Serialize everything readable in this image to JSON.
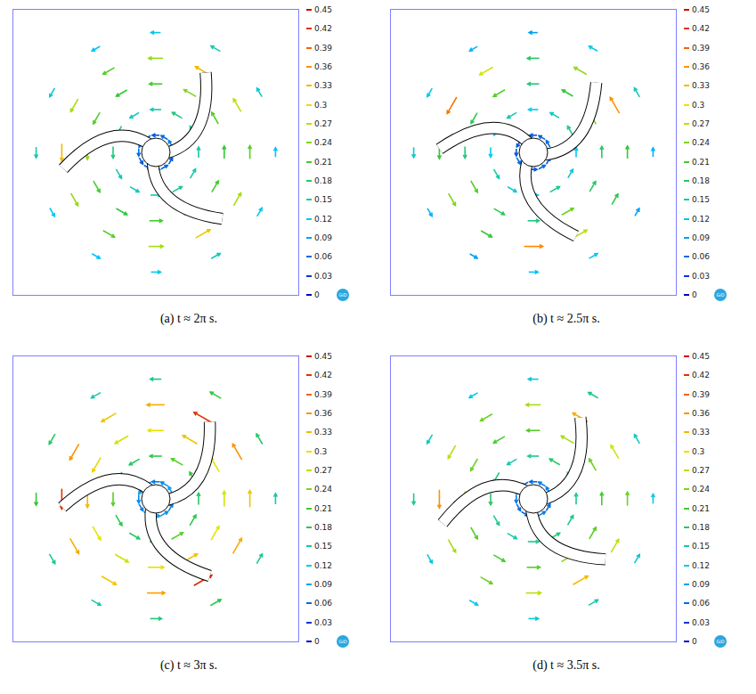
{
  "chart_data": [
    {
      "type": "vector_field",
      "title": "(a) t ≈ 2π s.",
      "xlim": [
        -0.5,
        0.5
      ],
      "ylim": [
        -0.5,
        0.5
      ],
      "tick_labels": false,
      "blade_tip_angles": [
        58,
        190,
        315
      ],
      "radii": [
        0.06,
        0.15,
        0.24,
        0.33,
        0.42
      ],
      "angles": [
        0,
        30,
        60,
        90,
        120,
        150,
        180,
        210,
        240,
        270,
        300,
        330
      ],
      "speed": [
        [
          0.06,
          0.07,
          0.06,
          0.05,
          0.06,
          0.07,
          0.06,
          0.05,
          0.06,
          0.07,
          0.06,
          0.05
        ],
        [
          0.15,
          0.16,
          0.17,
          0.15,
          0.14,
          0.16,
          0.17,
          0.15,
          0.14,
          0.15,
          0.16,
          0.15
        ],
        [
          0.2,
          0.22,
          0.24,
          0.21,
          0.2,
          0.22,
          0.25,
          0.21,
          0.2,
          0.21,
          0.24,
          0.21
        ],
        [
          0.22,
          0.27,
          0.33,
          0.25,
          0.22,
          0.26,
          0.33,
          0.25,
          0.22,
          0.26,
          0.32,
          0.26
        ],
        [
          0.11,
          0.13,
          0.15,
          0.12,
          0.11,
          0.13,
          0.15,
          0.12,
          0.11,
          0.12,
          0.14,
          0.12
        ]
      ],
      "colorbar": {
        "range": [
          0,
          0.45
        ],
        "ticks": [
          0,
          0.03,
          0.06,
          0.09,
          0.12,
          0.15,
          0.18,
          0.21,
          0.24,
          0.27,
          0.3,
          0.33,
          0.36,
          0.39,
          0.42,
          0.45
        ]
      },
      "logo": "GiD"
    },
    {
      "type": "vector_field",
      "title": "(b) t ≈ 2.5π s.",
      "xlim": [
        -0.5,
        0.5
      ],
      "ylim": [
        -0.5,
        0.5
      ],
      "tick_labels": false,
      "blade_tip_angles": [
        48,
        178,
        297
      ],
      "radii": [
        0.06,
        0.15,
        0.24,
        0.33,
        0.42
      ],
      "angles": [
        0,
        30,
        60,
        90,
        120,
        150,
        180,
        210,
        240,
        270,
        300,
        330
      ],
      "speed": [
        [
          0.05,
          0.06,
          0.05,
          0.05,
          0.06,
          0.05,
          0.05,
          0.06,
          0.05,
          0.05,
          0.06,
          0.05
        ],
        [
          0.12,
          0.16,
          0.14,
          0.12,
          0.15,
          0.13,
          0.12,
          0.15,
          0.13,
          0.12,
          0.16,
          0.13
        ],
        [
          0.18,
          0.24,
          0.2,
          0.17,
          0.22,
          0.19,
          0.17,
          0.22,
          0.19,
          0.17,
          0.23,
          0.18
        ],
        [
          0.2,
          0.36,
          0.25,
          0.18,
          0.28,
          0.38,
          0.2,
          0.24,
          0.2,
          0.37,
          0.27,
          0.19
        ],
        [
          0.1,
          0.14,
          0.12,
          0.09,
          0.1,
          0.12,
          0.13,
          0.1,
          0.09,
          0.11,
          0.12,
          0.09
        ]
      ],
      "colorbar": {
        "range": [
          0,
          0.45
        ],
        "ticks": [
          0,
          0.03,
          0.06,
          0.09,
          0.12,
          0.15,
          0.18,
          0.21,
          0.24,
          0.27,
          0.3,
          0.33,
          0.36,
          0.39,
          0.42,
          0.45
        ]
      },
      "logo": "GiD"
    },
    {
      "type": "vector_field",
      "title": "(c) t ≈ 3π s.",
      "xlim": [
        -0.5,
        0.5
      ],
      "ylim": [
        -0.5,
        0.5
      ],
      "tick_labels": false,
      "blade_tip_angles": [
        55,
        185,
        305
      ],
      "radii": [
        0.06,
        0.15,
        0.24,
        0.33,
        0.42
      ],
      "angles": [
        0,
        30,
        60,
        90,
        120,
        150,
        180,
        210,
        240,
        270,
        300,
        330
      ],
      "speed": [
        [
          0.08,
          0.09,
          0.08,
          0.07,
          0.08,
          0.09,
          0.08,
          0.07,
          0.08,
          0.09,
          0.08,
          0.07
        ],
        [
          0.18,
          0.2,
          0.22,
          0.19,
          0.18,
          0.2,
          0.22,
          0.19,
          0.18,
          0.2,
          0.22,
          0.19
        ],
        [
          0.28,
          0.3,
          0.32,
          0.29,
          0.28,
          0.31,
          0.33,
          0.29,
          0.28,
          0.3,
          0.32,
          0.29
        ],
        [
          0.32,
          0.36,
          0.42,
          0.34,
          0.32,
          0.36,
          0.42,
          0.34,
          0.32,
          0.35,
          0.43,
          0.34
        ],
        [
          0.15,
          0.18,
          0.2,
          0.16,
          0.15,
          0.18,
          0.2,
          0.16,
          0.15,
          0.17,
          0.19,
          0.16
        ]
      ],
      "colorbar": {
        "range": [
          0,
          0.45
        ],
        "ticks": [
          0,
          0.03,
          0.06,
          0.09,
          0.12,
          0.15,
          0.18,
          0.21,
          0.24,
          0.27,
          0.3,
          0.33,
          0.36,
          0.39,
          0.42,
          0.45
        ]
      },
      "logo": "GiD"
    },
    {
      "type": "vector_field",
      "title": "(d) t ≈ 3.5π s.",
      "xlim": [
        -0.5,
        0.5
      ],
      "ylim": [
        -0.5,
        0.5
      ],
      "tick_labels": false,
      "blade_tip_angles": [
        60,
        195,
        320
      ],
      "radii": [
        0.06,
        0.15,
        0.24,
        0.33,
        0.42
      ],
      "angles": [
        0,
        30,
        60,
        90,
        120,
        150,
        180,
        210,
        240,
        270,
        300,
        330
      ],
      "speed": [
        [
          0.06,
          0.07,
          0.07,
          0.06,
          0.06,
          0.07,
          0.07,
          0.06,
          0.06,
          0.07,
          0.07,
          0.06
        ],
        [
          0.16,
          0.17,
          0.18,
          0.16,
          0.15,
          0.17,
          0.18,
          0.16,
          0.15,
          0.16,
          0.17,
          0.16
        ],
        [
          0.21,
          0.23,
          0.26,
          0.22,
          0.21,
          0.23,
          0.27,
          0.22,
          0.21,
          0.22,
          0.25,
          0.22
        ],
        [
          0.23,
          0.28,
          0.34,
          0.26,
          0.23,
          0.27,
          0.36,
          0.26,
          0.23,
          0.27,
          0.33,
          0.27
        ],
        [
          0.12,
          0.14,
          0.16,
          0.13,
          0.12,
          0.14,
          0.16,
          0.13,
          0.12,
          0.13,
          0.15,
          0.13
        ]
      ],
      "colorbar": {
        "range": [
          0,
          0.45
        ],
        "ticks": [
          0,
          0.03,
          0.06,
          0.09,
          0.12,
          0.15,
          0.18,
          0.21,
          0.24,
          0.27,
          0.3,
          0.33,
          0.36,
          0.39,
          0.42,
          0.45
        ]
      },
      "logo": "GiD"
    }
  ]
}
